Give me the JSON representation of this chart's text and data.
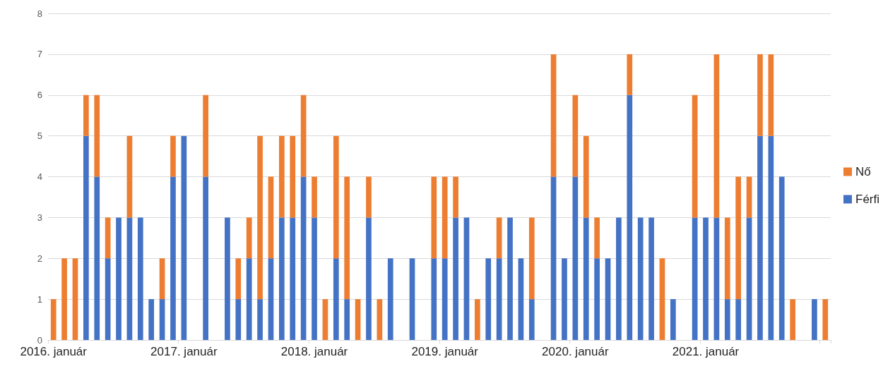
{
  "chart_data": {
    "type": "bar",
    "stacked": true,
    "categories": [
      "2016. január",
      null,
      null,
      null,
      null,
      null,
      null,
      null,
      null,
      null,
      null,
      null,
      "2017. január",
      null,
      null,
      null,
      null,
      null,
      null,
      null,
      null,
      null,
      null,
      null,
      "2018. január",
      null,
      null,
      null,
      null,
      null,
      null,
      null,
      null,
      null,
      null,
      null,
      "2019. január",
      null,
      null,
      null,
      null,
      null,
      null,
      null,
      null,
      null,
      null,
      null,
      "2020. január",
      null,
      null,
      null,
      null,
      null,
      null,
      null,
      null,
      null,
      null,
      null,
      "2021. január",
      null,
      null,
      null,
      null,
      null,
      null,
      null,
      null,
      null,
      null,
      null
    ],
    "series": [
      {
        "name": "Férfi",
        "color": "#4472c4",
        "values": [
          0,
          0,
          0,
          5,
          4,
          2,
          3,
          3,
          3,
          1,
          1,
          4,
          5,
          0,
          4,
          0,
          3,
          1,
          2,
          1,
          2,
          3,
          3,
          4,
          3,
          0,
          2,
          1,
          0,
          3,
          0,
          2,
          0,
          2,
          0,
          2,
          2,
          3,
          3,
          0,
          2,
          2,
          3,
          2,
          1,
          0,
          4,
          2,
          4,
          3,
          2,
          2,
          3,
          6,
          3,
          3,
          0,
          1,
          0,
          3,
          3,
          3,
          1,
          1,
          3,
          5,
          5,
          4,
          0,
          0,
          1,
          0
        ]
      },
      {
        "name": "Nő",
        "color": "#ed7d31",
        "values": [
          1,
          2,
          2,
          1,
          2,
          1,
          0,
          2,
          0,
          0,
          1,
          1,
          0,
          0,
          2,
          0,
          0,
          1,
          1,
          4,
          2,
          2,
          2,
          2,
          1,
          1,
          3,
          3,
          1,
          1,
          1,
          0,
          0,
          0,
          0,
          2,
          2,
          1,
          0,
          1,
          0,
          1,
          0,
          0,
          2,
          0,
          3,
          0,
          2,
          2,
          1,
          0,
          0,
          1,
          0,
          0,
          2,
          0,
          0,
          3,
          0,
          4,
          2,
          3,
          1,
          2,
          2,
          0,
          1,
          0,
          0,
          1
        ]
      }
    ],
    "ylim": [
      0,
      8
    ],
    "yticks": [
      0,
      1,
      2,
      3,
      4,
      5,
      6,
      7,
      8
    ],
    "grid": "y",
    "legend": "right"
  }
}
